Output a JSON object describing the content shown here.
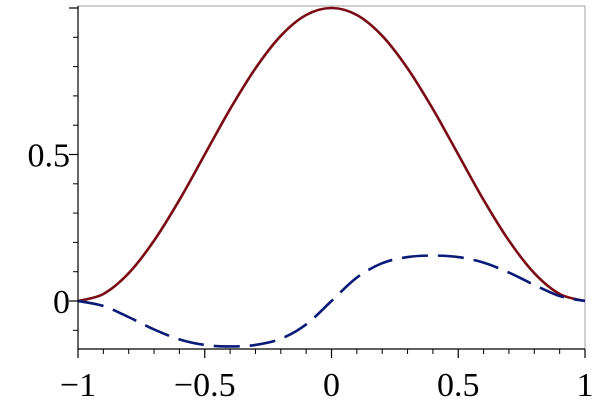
{
  "chart_data": {
    "type": "line",
    "title": "",
    "xlabel": "",
    "ylabel": "",
    "xlim": [
      -1,
      1
    ],
    "ylim": [
      -0.18,
      1.0
    ],
    "grid": false,
    "legend": "none",
    "x_ticks": [
      {
        "value": -1,
        "label": "−1"
      },
      {
        "value": -0.5,
        "label": "−0.5"
      },
      {
        "value": 0,
        "label": "0"
      },
      {
        "value": 0.5,
        "label": "0.5"
      },
      {
        "value": 1,
        "label": "1"
      }
    ],
    "y_ticks": [
      {
        "value": 0,
        "label": "0"
      },
      {
        "value": 0.5,
        "label": "0.5"
      }
    ],
    "series": [
      {
        "style": "solid",
        "color": "#7a0a14",
        "x": [
          -1.0,
          -0.9,
          -0.8,
          -0.7,
          -0.6,
          -0.5,
          -0.4,
          -0.3,
          -0.2,
          -0.1,
          0.0,
          0.1,
          0.2,
          0.3,
          0.4,
          0.5,
          0.6,
          0.7,
          0.8,
          0.9,
          1.0
        ],
        "y": [
          0.0,
          0.024,
          0.095,
          0.206,
          0.345,
          0.5,
          0.655,
          0.794,
          0.905,
          0.976,
          1.0,
          0.976,
          0.905,
          0.794,
          0.655,
          0.5,
          0.345,
          0.206,
          0.095,
          0.024,
          0.0
        ]
      },
      {
        "style": "dashed",
        "color": "#0a1a78",
        "x": [
          -1.0,
          -0.9,
          -0.8,
          -0.7,
          -0.6,
          -0.5,
          -0.4,
          -0.3,
          -0.2,
          -0.1,
          0.0,
          0.1,
          0.2,
          0.3,
          0.4,
          0.5,
          0.6,
          0.7,
          0.8,
          0.9,
          1.0
        ],
        "y": [
          0.0,
          -0.017,
          -0.055,
          -0.097,
          -0.131,
          -0.15,
          -0.155,
          -0.15,
          -0.129,
          -0.08,
          0.0,
          0.08,
          0.129,
          0.15,
          0.155,
          0.15,
          0.131,
          0.097,
          0.055,
          0.017,
          0.0
        ]
      }
    ]
  }
}
